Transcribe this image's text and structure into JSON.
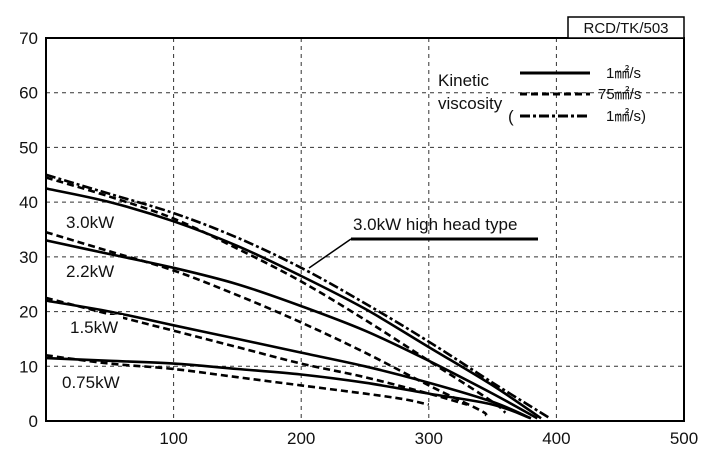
{
  "chart_data": {
    "type": "line",
    "code": "RCD/TK/503",
    "xlabel": "",
    "ylabel": "",
    "xlim": [
      0,
      500
    ],
    "ylim": [
      0,
      70
    ],
    "x_ticks": [
      "100",
      "200",
      "300",
      "400",
      "500"
    ],
    "y_ticks": [
      "0",
      "10",
      "20",
      "30",
      "40",
      "50",
      "60",
      "70"
    ],
    "grid": "dashed",
    "legend": {
      "title_line1": "Kinetic",
      "title_line2": "viscosity",
      "paren_open": "(",
      "placement": "top-right",
      "entries": [
        {
          "label": "1㎟/s",
          "style": "solid"
        },
        {
          "label": "75㎟/s",
          "style": "dashed"
        },
        {
          "label": "1㎟/s)",
          "style": "dashdot"
        }
      ]
    },
    "annotations": {
      "high_head": "3.0kW high head type",
      "motors": [
        "3.0kW",
        "2.2kW",
        "1.5kW",
        "0.75kW"
      ]
    },
    "series": [
      {
        "motor": "3.0kW",
        "viscosity": "1㎟/s",
        "style": "solid",
        "points": [
          [
            0,
            42.5
          ],
          [
            50,
            40
          ],
          [
            100,
            36.5
          ],
          [
            150,
            32
          ],
          [
            200,
            26.5
          ],
          [
            250,
            20.5
          ],
          [
            300,
            13.5
          ],
          [
            350,
            6.5
          ],
          [
            388,
            0.5
          ]
        ]
      },
      {
        "motor": "3.0kW",
        "viscosity": "75㎟/s",
        "style": "dashed",
        "points": [
          [
            0,
            44.5
          ],
          [
            50,
            41
          ],
          [
            100,
            37
          ],
          [
            150,
            31.5
          ],
          [
            200,
            25.5
          ],
          [
            250,
            18.5
          ],
          [
            300,
            11
          ],
          [
            350,
            3.5
          ],
          [
            360,
            1.5
          ]
        ]
      },
      {
        "motor": "3.0kW high head type",
        "viscosity": "1㎟/s",
        "style": "dashdot",
        "points": [
          [
            0,
            45
          ],
          [
            50,
            41.5
          ],
          [
            100,
            38
          ],
          [
            150,
            33.5
          ],
          [
            200,
            28
          ],
          [
            250,
            21.5
          ],
          [
            300,
            14.5
          ],
          [
            350,
            7
          ],
          [
            395,
            0.5
          ]
        ]
      },
      {
        "motor": "2.2kW",
        "viscosity": "1㎟/s",
        "style": "solid",
        "points": [
          [
            0,
            33
          ],
          [
            50,
            30.5
          ],
          [
            100,
            28
          ],
          [
            150,
            25
          ],
          [
            200,
            21
          ],
          [
            250,
            16.5
          ],
          [
            300,
            11
          ],
          [
            350,
            5
          ],
          [
            385,
            0.5
          ]
        ]
      },
      {
        "motor": "2.2kW",
        "viscosity": "75㎟/s",
        "style": "dashed",
        "points": [
          [
            0,
            34.5
          ],
          [
            50,
            31
          ],
          [
            100,
            27.5
          ],
          [
            150,
            23
          ],
          [
            200,
            18
          ],
          [
            250,
            12.5
          ],
          [
            300,
            6.5
          ],
          [
            340,
            2
          ],
          [
            345,
            1
          ]
        ]
      },
      {
        "motor": "1.5kW",
        "viscosity": "1㎟/s",
        "style": "solid",
        "points": [
          [
            0,
            22
          ],
          [
            50,
            20
          ],
          [
            100,
            17.5
          ],
          [
            150,
            15
          ],
          [
            200,
            12.5
          ],
          [
            250,
            10
          ],
          [
            300,
            7
          ],
          [
            350,
            3.5
          ],
          [
            380,
            0.5
          ]
        ]
      },
      {
        "motor": "1.5kW",
        "viscosity": "75㎟/s",
        "style": "dashed",
        "points": [
          [
            0,
            22.5
          ],
          [
            50,
            19.5
          ],
          [
            100,
            16.5
          ],
          [
            150,
            13.5
          ],
          [
            200,
            10.5
          ],
          [
            250,
            8
          ],
          [
            300,
            5
          ],
          [
            330,
            3
          ]
        ]
      },
      {
        "motor": "0.75kW",
        "viscosity": "1㎟/s",
        "style": "solid",
        "points": [
          [
            0,
            11.5
          ],
          [
            50,
            11
          ],
          [
            100,
            10.5
          ],
          [
            150,
            9.5
          ],
          [
            200,
            8.5
          ],
          [
            250,
            7
          ],
          [
            300,
            5
          ],
          [
            350,
            3
          ],
          [
            380,
            0.5
          ]
        ]
      },
      {
        "motor": "0.75kW",
        "viscosity": "75㎟/s",
        "style": "dashed",
        "points": [
          [
            0,
            12
          ],
          [
            50,
            10.5
          ],
          [
            100,
            9.5
          ],
          [
            150,
            8
          ],
          [
            200,
            6.5
          ],
          [
            250,
            5
          ],
          [
            280,
            4
          ],
          [
            300,
            3
          ]
        ]
      }
    ]
  }
}
